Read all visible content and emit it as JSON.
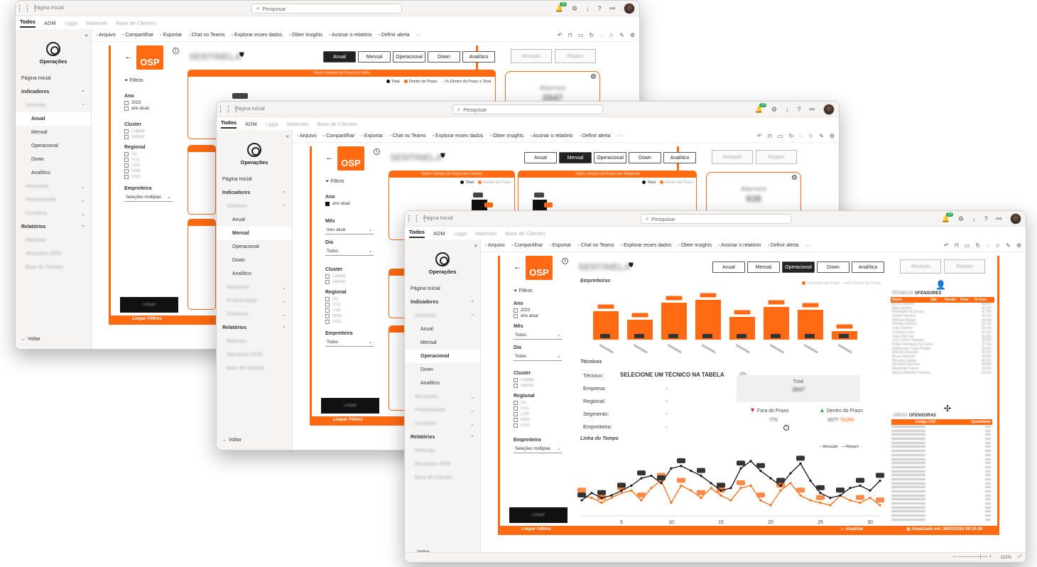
{
  "app": {
    "search_placeholder": "Pesquisar",
    "breadcrumb": "Página Inicial",
    "notif_count": "10",
    "tabs": [
      {
        "label": "Todos",
        "active": true
      },
      {
        "label": "ADM",
        "active": false
      },
      {
        "label": "Ligga",
        "active": false,
        "blurred": true
      },
      {
        "label": "Materiais",
        "active": false,
        "blurred": true
      },
      {
        "label": "Base de Clientes",
        "active": false,
        "blurred": true
      }
    ],
    "toolbar": [
      {
        "label": "Arquivo",
        "icon": "file-icon"
      },
      {
        "label": "Compartilhar",
        "icon": "share-icon"
      },
      {
        "label": "Exportar",
        "icon": "export-icon"
      },
      {
        "label": "Chat no Teams",
        "icon": "teams-icon"
      },
      {
        "label": "Explorar esses dados",
        "icon": "explore-icon"
      },
      {
        "label": "Obter insights",
        "icon": "bulb-icon"
      },
      {
        "label": "Assinar o relatório",
        "icon": "subscribe-icon"
      },
      {
        "label": "Definir alerta",
        "icon": "bell-icon"
      },
      {
        "label": "···",
        "icon": "more-icon"
      }
    ]
  },
  "nav": {
    "logo_label": "Operações",
    "items": [
      {
        "label": "Página Inicial",
        "level": 0
      },
      {
        "label": "Indicadores",
        "level": 0,
        "bold": true,
        "chevron": "^"
      },
      {
        "label": "Sentinela",
        "level": 1,
        "blurred": true,
        "chevron": "^"
      },
      {
        "label": "Anual",
        "level": 2
      },
      {
        "label": "Mensal",
        "level": 2
      },
      {
        "label": "Operacional",
        "level": 2
      },
      {
        "label": "Down",
        "level": 2
      },
      {
        "label": "Analítico",
        "level": 2
      },
      {
        "label": "Alocações",
        "level": 1,
        "blurred": true,
        "chevron": "v"
      },
      {
        "label": "Produtividade",
        "level": 1,
        "blurred": true,
        "chevron": "v"
      },
      {
        "label": "Ouvidoria",
        "level": 1,
        "blurred": true,
        "chevron": "v"
      },
      {
        "label": "Relatórios",
        "level": 0,
        "bold": true,
        "chevron": "^"
      },
      {
        "label": "Materiais",
        "level": 1,
        "blurred": true
      },
      {
        "label": "Alocações OPM",
        "level": 1,
        "blurred": true
      },
      {
        "label": "Base de Clientes",
        "level": 1,
        "blurred": true
      }
    ],
    "back_label": "Voltar"
  },
  "report": {
    "logo": "OSP",
    "title_blurred": "SENTINELA",
    "footer_brand": "Limper Fiiltros",
    "filters_label": "Filtros",
    "year_label": "Ano",
    "year_options": [
      "2023",
      "ano atual"
    ],
    "month_label": "Mês",
    "day_label": "Dia",
    "select_all": "Todos",
    "month_current": "mes atual",
    "cluster_label": "Cluster",
    "cluster_options": [
      "Capital",
      "Interior"
    ],
    "regional_label": "Regional",
    "regional_options": [
      "ISL",
      "STA",
      "LSN",
      "NSN",
      "PSO"
    ],
    "contractor_label": "Empreiteira",
    "multi_select": "Seleções múltiplas",
    "clear_label": "Limpar",
    "page_buttons": [
      "Anual",
      "Mensal",
      "Operacional",
      "Down",
      "Analítico"
    ],
    "grey_buttons": [
      "Ativação",
      "Reparo"
    ],
    "alarms_label": "Alarmes",
    "alarms_value_1": "2847",
    "alarms_value_2": "938",
    "card_title_year": "Total e Dentro do Prazo por Mês",
    "card_title_cluster": "Total e Dentro do Prazo por Cluster",
    "card_title_regional": "Total e Dentro do Prazo por Regional",
    "legend_total": "Total",
    "legend_in": "Dentro do Prazo",
    "legend_pct": "% Dentro do Prazo x Total"
  },
  "operational": {
    "contractors_title": "Empreiteiras",
    "contractors_legend": [
      "% Dentro do Prazo",
      "% Dentro do Prazo"
    ],
    "techs_title": "Técnicos",
    "tech_label": "Técnico:",
    "tech_value": "SELECIONE UM TÉCNICO NA TABELA",
    "company_label": "Empresa:",
    "regional_label": "Regional:",
    "segment_label": "Segmento:",
    "contractor_label": "Empreiteira:",
    "dash": "-",
    "total_label": "Total",
    "total_value": "2847",
    "out_label": "Fora do Prazo",
    "out_value": "770",
    "in_label": "Dentro do Prazo",
    "in_value": "2077",
    "in_pct": "73,0%",
    "timeline_title": "Linha do Tempo",
    "timeline_legend": [
      "Ativação",
      "Reparo"
    ],
    "offenders_title": "OFENSORES",
    "offenders_title_blurred": "TÉCNICOS",
    "offenders_cols": [
      "Nome",
      "Qtd",
      "Dentro",
      "Fora",
      "% Fora"
    ],
    "offenders_names": [
      "Bruno Antonio",
      "Alan Sandro",
      "Rodrigues da Souza",
      "Kleber Ferreira",
      "Richard Brauer",
      "Dornas Vinicius",
      "Joao Gabriel",
      "Lindsom Lima",
      "Joao Vitor Ge",
      "Luis Carlos Caetano",
      "Pedro Henrique Da Costa",
      "Guilherme Costa Freitas",
      "Marcos Eduardo",
      "Bruno Antunes",
      "Renata Cristina",
      "Denadiel Guerino",
      "Wosnhak Franco",
      "Marcio Roberto Ferreira"
    ],
    "offenders_pcts": [
      "68,8%",
      "45,0%",
      "41,0%",
      "36,2%",
      "35,4%",
      "34,2%",
      "33,3%",
      "32,1%",
      "31,8%",
      "30,0%",
      "37,1%",
      "35,0%",
      "33,3%",
      "35,9%",
      "36,2%",
      "34,8%",
      "33,0%",
      "33,3%"
    ],
    "alarms_table_title": "OFENSORAS",
    "alarms_table_title_blurred": "ÁREAS",
    "alarms_cols": [
      "Código OSP",
      "Quantidade"
    ],
    "updated_label": "Atualizado em: 26/02/2024 09:10:26",
    "refresh_label": "Atualizar",
    "zoom": "121%"
  },
  "chart_data": {
    "type": "line",
    "title": "Linha do Tempo",
    "x": [
      1,
      2,
      3,
      4,
      5,
      6,
      7,
      8,
      9,
      10,
      11,
      12,
      13,
      14,
      15,
      16,
      17,
      18,
      19,
      20,
      21,
      22,
      23,
      24,
      25,
      26,
      27,
      28,
      29,
      30,
      31
    ],
    "series": [
      {
        "name": "Ativação",
        "color": "#ff6a13",
        "values": [
          6,
          5,
          3,
          5,
          7,
          8,
          4,
          9,
          12,
          3,
          10,
          8,
          5,
          9,
          6,
          4,
          9,
          10,
          4,
          2,
          8,
          11,
          6,
          4,
          3,
          2,
          6,
          4,
          3,
          5,
          2
        ]
      },
      {
        "name": "Reparo",
        "color": "#111111",
        "values": [
          4,
          7,
          5,
          6,
          8,
          10,
          13,
          14,
          11,
          17,
          18,
          16,
          14,
          11,
          8,
          9,
          17,
          20,
          16,
          13,
          10,
          15,
          19,
          12,
          7,
          5,
          6,
          9,
          10,
          8,
          12
        ]
      }
    ],
    "xticks": [
      5,
      10,
      15,
      20,
      25,
      30
    ],
    "xlabel": "",
    "ylabel": ""
  }
}
